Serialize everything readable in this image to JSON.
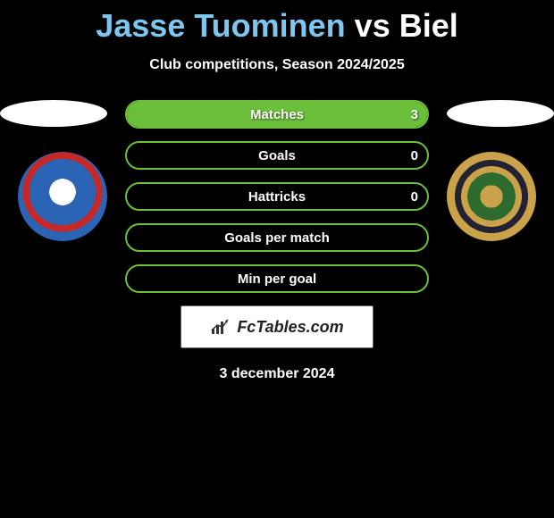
{
  "title": {
    "player1": "Jasse Tuominen",
    "vs": "vs",
    "player2": "Biel"
  },
  "subtitle": "Club competitions, Season 2024/2025",
  "bars": [
    {
      "label": "Matches",
      "left": "",
      "right": "3",
      "fill_pct": 100,
      "fill_color": "#6bbf3a"
    },
    {
      "label": "Goals",
      "left": "",
      "right": "0",
      "fill_pct": 0,
      "fill_color": "#6bbf3a"
    },
    {
      "label": "Hattricks",
      "left": "",
      "right": "0",
      "fill_pct": 0,
      "fill_color": "#6bbf3a"
    },
    {
      "label": "Goals per match",
      "left": "",
      "right": "",
      "fill_pct": 0,
      "fill_color": "#6bbf3a"
    },
    {
      "label": "Min per goal",
      "left": "",
      "right": "",
      "fill_pct": 0,
      "fill_color": "#6bbf3a"
    }
  ],
  "logo": {
    "text": "FcTables.com"
  },
  "date": "3 december 2024",
  "colors": {
    "background": "#000000",
    "bar_border": "#6bbf3a",
    "title_p1": "#7dc6f0",
    "title_vs": "#ffffff",
    "title_p2": "#ffffff"
  }
}
